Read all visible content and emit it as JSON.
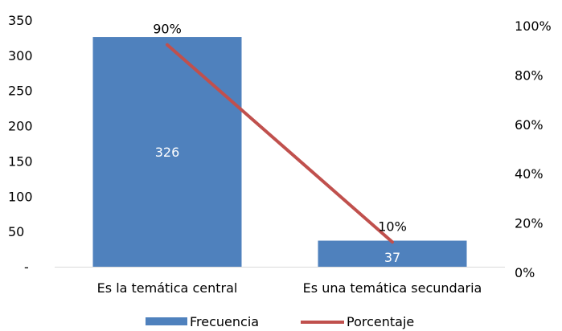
{
  "chart_data": {
    "type": "bar",
    "categories": [
      "Es la temática central",
      "Es una temática secundaria"
    ],
    "series": [
      {
        "name": "Frecuencia",
        "kind": "bar",
        "axis": "left",
        "values": [
          326,
          37
        ],
        "value_labels": [
          "326",
          "37"
        ],
        "color": "#4F81BD"
      },
      {
        "name": "Porcentaje",
        "kind": "line",
        "axis": "right",
        "values": [
          0.9,
          0.1
        ],
        "value_labels": [
          "90%",
          "10%"
        ],
        "color": "#C0504D"
      }
    ],
    "left_axis": {
      "ylim": [
        0,
        350
      ],
      "ticks": [
        0,
        50,
        100,
        150,
        200,
        250,
        300,
        350
      ],
      "tick_labels": [
        "-",
        "50",
        "100",
        "150",
        "200",
        "250",
        "300",
        "350"
      ]
    },
    "right_axis": {
      "ylim": [
        0,
        1
      ],
      "ticks": [
        0,
        0.2,
        0.4,
        0.6,
        0.8,
        1.0
      ],
      "tick_labels": [
        "0%",
        "20%",
        "40%",
        "60%",
        "80%",
        "100%"
      ]
    },
    "grid": false,
    "legend": {
      "position": "bottom",
      "entries": [
        "Frecuencia",
        "Porcentaje"
      ]
    },
    "title": "",
    "xlabel": "",
    "ylabel": ""
  }
}
